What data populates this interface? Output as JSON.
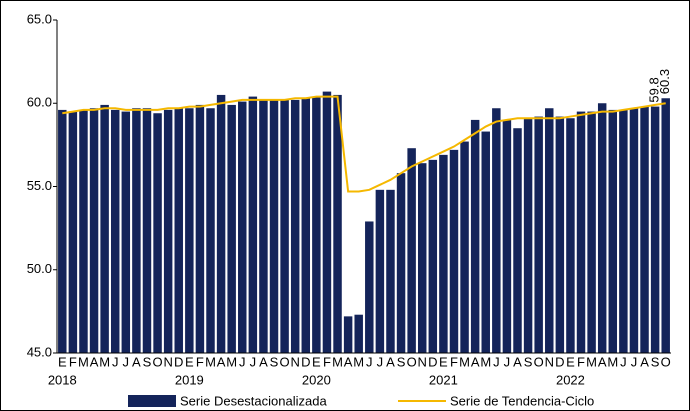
{
  "chart_data": {
    "type": "bar_line",
    "categories": [
      "E",
      "F",
      "M",
      "A",
      "M",
      "J",
      "J",
      "A",
      "S",
      "O",
      "N",
      "D",
      "E",
      "F",
      "M",
      "A",
      "M",
      "J",
      "J",
      "A",
      "S",
      "O",
      "N",
      "D",
      "E",
      "F",
      "M",
      "A",
      "M",
      "J",
      "J",
      "A",
      "S",
      "O",
      "N",
      "D",
      "E",
      "F",
      "M",
      "A",
      "M",
      "J",
      "J",
      "A",
      "S",
      "O",
      "N",
      "D",
      "E",
      "F",
      "M",
      "A",
      "M",
      "J",
      "J",
      "A",
      "S",
      "O"
    ],
    "year_labels": [
      "2018",
      null,
      null,
      null,
      null,
      null,
      null,
      null,
      null,
      null,
      null,
      null,
      "2019",
      null,
      null,
      null,
      null,
      null,
      null,
      null,
      null,
      null,
      null,
      null,
      "2020",
      null,
      null,
      null,
      null,
      null,
      null,
      null,
      null,
      null,
      null,
      null,
      "2021",
      null,
      null,
      null,
      null,
      null,
      null,
      null,
      null,
      null,
      null,
      null,
      "2022",
      null,
      null,
      null,
      null,
      null,
      null,
      null,
      null,
      null
    ],
    "series": [
      {
        "name": "Serie Desestacionalizada",
        "type": "bar",
        "color": "#14245a",
        "values": [
          59.6,
          59.5,
          59.6,
          59.7,
          59.9,
          59.6,
          59.5,
          59.7,
          59.7,
          59.4,
          59.6,
          59.7,
          59.7,
          59.9,
          59.7,
          60.5,
          59.9,
          60.1,
          60.4,
          60.2,
          60.2,
          60.2,
          60.2,
          60.3,
          60.4,
          60.7,
          60.5,
          47.2,
          47.3,
          52.9,
          54.8,
          54.8,
          55.8,
          57.3,
          56.4,
          56.6,
          56.9,
          57.2,
          57.7,
          59.0,
          58.3,
          59.7,
          59.0,
          58.5,
          59.1,
          59.2,
          59.7,
          59.2,
          59.1,
          59.5,
          59.5,
          60.0,
          59.6,
          59.6,
          59.7,
          59.8,
          59.8,
          60.3
        ],
        "value_labels": [
          null,
          null,
          null,
          null,
          null,
          null,
          null,
          null,
          null,
          null,
          null,
          null,
          null,
          null,
          null,
          null,
          null,
          null,
          null,
          null,
          null,
          null,
          null,
          null,
          null,
          null,
          null,
          null,
          null,
          null,
          null,
          null,
          null,
          null,
          null,
          null,
          null,
          null,
          null,
          null,
          null,
          null,
          null,
          null,
          null,
          null,
          null,
          null,
          null,
          null,
          null,
          null,
          null,
          null,
          null,
          null,
          "59.8",
          "60.3"
        ]
      },
      {
        "name": "Serie de Tendencia-Ciclo",
        "type": "line",
        "color": "#f5b800",
        "values": [
          59.4,
          59.5,
          59.6,
          59.6,
          59.7,
          59.7,
          59.6,
          59.6,
          59.6,
          59.6,
          59.7,
          59.7,
          59.8,
          59.8,
          59.9,
          60.0,
          60.1,
          60.2,
          60.2,
          60.2,
          60.2,
          60.2,
          60.3,
          60.3,
          60.4,
          60.4,
          60.4,
          54.7,
          54.7,
          54.8,
          55.1,
          55.4,
          55.8,
          56.2,
          56.5,
          56.8,
          57.1,
          57.4,
          57.8,
          58.2,
          58.6,
          58.9,
          59.0,
          59.1,
          59.1,
          59.1,
          59.1,
          59.1,
          59.2,
          59.3,
          59.4,
          59.5,
          59.5,
          59.6,
          59.7,
          59.8,
          59.9,
          60.0
        ]
      }
    ],
    "ylim": [
      45,
      65
    ],
    "yticks": [
      {
        "value": 45,
        "label": "45.0"
      },
      {
        "value": 50,
        "label": "50.0"
      },
      {
        "value": 55,
        "label": "55.0"
      },
      {
        "value": 60,
        "label": "60.0"
      },
      {
        "value": 65,
        "label": "65.0"
      }
    ]
  }
}
